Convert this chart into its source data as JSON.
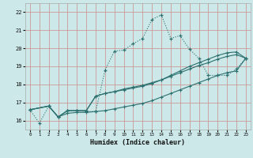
{
  "xlabel": "Humidex (Indice chaleur)",
  "bg_color": "#cce8e8",
  "line_color": "#2d7070",
  "grid_color": "#cc9999",
  "xlim": [
    -0.5,
    23.5
  ],
  "ylim": [
    15.5,
    22.5
  ],
  "xticks": [
    0,
    1,
    2,
    3,
    4,
    5,
    6,
    7,
    8,
    9,
    10,
    11,
    12,
    13,
    14,
    15,
    16,
    17,
    18,
    19,
    20,
    21,
    22,
    23
  ],
  "yticks": [
    16,
    17,
    18,
    19,
    20,
    21,
    22
  ],
  "series1_x": [
    0,
    1,
    2,
    3,
    4,
    5,
    6,
    7,
    8,
    9,
    10,
    11,
    12,
    13,
    14,
    15,
    16,
    17,
    18,
    19,
    20,
    21,
    22,
    23
  ],
  "series1_y": [
    16.6,
    15.85,
    16.8,
    16.2,
    16.55,
    16.55,
    16.5,
    16.5,
    18.8,
    19.85,
    19.9,
    20.25,
    20.55,
    21.6,
    21.85,
    20.55,
    20.7,
    19.95,
    19.45,
    18.5,
    18.5,
    18.5,
    18.85,
    19.45
  ],
  "series2_x": [
    0,
    2,
    3,
    4,
    5,
    6,
    7,
    8,
    9,
    10,
    11,
    12,
    13,
    14,
    15,
    16,
    17,
    18,
    19,
    20,
    21,
    22,
    23
  ],
  "series2_y": [
    16.6,
    16.8,
    16.2,
    16.55,
    16.55,
    16.55,
    17.35,
    17.5,
    17.6,
    17.75,
    17.85,
    17.95,
    18.1,
    18.25,
    18.45,
    18.65,
    18.85,
    19.05,
    19.2,
    19.4,
    19.55,
    19.65,
    19.45
  ],
  "series3_x": [
    0,
    2,
    3,
    4,
    5,
    6,
    7,
    8,
    9,
    10,
    11,
    12,
    13,
    14,
    15,
    16,
    17,
    18,
    19,
    20,
    21,
    22,
    23
  ],
  "series3_y": [
    16.6,
    16.8,
    16.2,
    16.4,
    16.45,
    16.45,
    16.5,
    16.55,
    16.65,
    16.75,
    16.85,
    16.95,
    17.1,
    17.3,
    17.5,
    17.7,
    17.9,
    18.1,
    18.3,
    18.5,
    18.65,
    18.75,
    19.45
  ],
  "series4_x": [
    0,
    2,
    3,
    4,
    5,
    6,
    7,
    8,
    9,
    10,
    11,
    12,
    13,
    14,
    15,
    16,
    17,
    18,
    19,
    20,
    21,
    22,
    23
  ],
  "series4_y": [
    16.6,
    16.8,
    16.2,
    16.55,
    16.55,
    16.55,
    17.35,
    17.5,
    17.6,
    17.7,
    17.8,
    17.9,
    18.05,
    18.25,
    18.5,
    18.75,
    19.0,
    19.2,
    19.4,
    19.6,
    19.75,
    19.8,
    19.45
  ]
}
